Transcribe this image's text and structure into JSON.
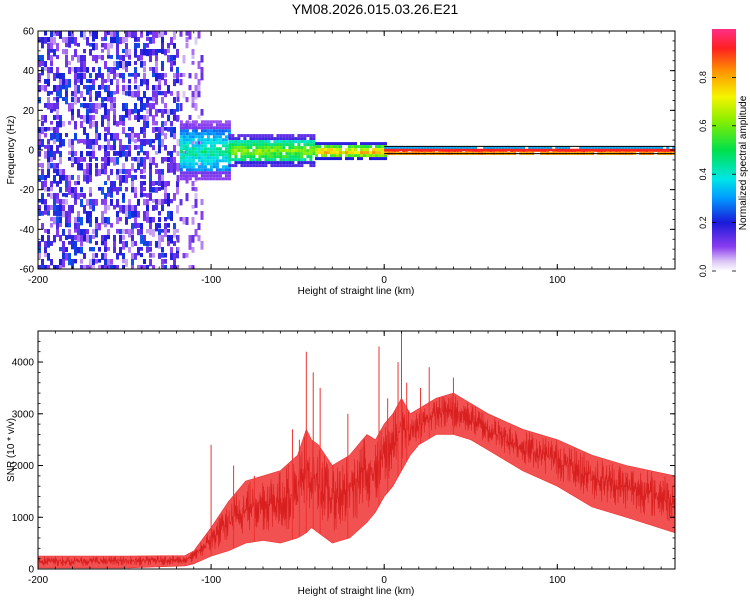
{
  "title": "YM08.2026.015.03.26.E21",
  "chart_data": [
    {
      "type": "heatmap",
      "xlabel": "Height of straight line (km)",
      "ylabel": "Frequency (Hz)",
      "xlim": [
        -200,
        168
      ],
      "ylim": [
        -60,
        60
      ],
      "xticks": [
        "-200",
        "-100",
        "0",
        "100"
      ],
      "yticks": [
        "-60",
        "-40",
        "-20",
        "0",
        "20",
        "40",
        "60"
      ],
      "colorbar": {
        "label": "Normalized spectral amplitude",
        "range": [
          0,
          1
        ],
        "ticks": [
          "0.0",
          "0.2",
          "0.4",
          "0.6",
          "0.8"
        ]
      },
      "regions": [
        {
          "x": [
            -200,
            -120
          ],
          "freq_spread": [
            -60,
            60
          ],
          "amplitude": [
            0.05,
            0.25
          ]
        },
        {
          "x": [
            -120,
            -105
          ],
          "freq_spread": [
            -60,
            60
          ],
          "amplitude": [
            0.03,
            0.15
          ]
        },
        {
          "x": [
            -118,
            -90
          ],
          "freq_spread": [
            -15,
            15
          ],
          "amplitude": [
            0.2,
            0.5
          ]
        },
        {
          "x": [
            -90,
            -40
          ],
          "freq_spread": [
            -8,
            8
          ],
          "amplitude": [
            0.3,
            0.7
          ]
        },
        {
          "x": [
            -40,
            0
          ],
          "freq_spread": [
            -4,
            4
          ],
          "amplitude": [
            0.4,
            0.9
          ]
        },
        {
          "x": [
            0,
            168
          ],
          "freq_spread": [
            -2,
            2
          ],
          "amplitude": [
            0.7,
            1.0
          ]
        }
      ]
    },
    {
      "type": "line",
      "xlabel": "Height of straight line (km)",
      "ylabel": "SNR (10 * v/v)",
      "xlim": [
        -200,
        168
      ],
      "ylim": [
        0,
        4600
      ],
      "xticks": [
        "-200",
        "-100",
        "0",
        "100"
      ],
      "yticks": [
        "0",
        "1000",
        "2000",
        "3000",
        "4000"
      ],
      "color": "#ee3333",
      "envelope": {
        "x": [
          -200,
          -150,
          -115,
          -110,
          -100,
          -90,
          -80,
          -70,
          -60,
          -50,
          -45,
          -42,
          -38,
          -30,
          -20,
          -10,
          -5,
          0,
          5,
          10,
          15,
          20,
          30,
          40,
          50,
          60,
          80,
          100,
          120,
          140,
          168
        ],
        "lower": [
          20,
          20,
          60,
          100,
          250,
          350,
          500,
          550,
          500,
          600,
          700,
          800,
          700,
          500,
          600,
          900,
          1100,
          1400,
          1600,
          1900,
          2200,
          2400,
          2600,
          2600,
          2500,
          2300,
          1900,
          1600,
          1200,
          1000,
          700
        ],
        "upper": [
          250,
          250,
          260,
          350,
          800,
          1300,
          1700,
          1800,
          1900,
          2200,
          2700,
          2500,
          2400,
          2000,
          2200,
          2600,
          2500,
          2800,
          3000,
          3300,
          3000,
          3100,
          3300,
          3400,
          3200,
          3000,
          2700,
          2500,
          2200,
          2000,
          1800
        ]
      },
      "spikes": [
        {
          "x": -100,
          "y": 2400
        },
        {
          "x": -87,
          "y": 2000
        },
        {
          "x": -75,
          "y": 1800
        },
        {
          "x": -53,
          "y": 2700
        },
        {
          "x": -49,
          "y": 2500
        },
        {
          "x": -45,
          "y": 4200
        },
        {
          "x": -41,
          "y": 3800
        },
        {
          "x": -37,
          "y": 3500
        },
        {
          "x": -21,
          "y": 3000
        },
        {
          "x": -3,
          "y": 4300
        },
        {
          "x": 2,
          "y": 3300
        },
        {
          "x": 8,
          "y": 4000
        },
        {
          "x": 10,
          "y": 4600
        },
        {
          "x": 13,
          "y": 3600
        },
        {
          "x": 21,
          "y": 3500
        },
        {
          "x": 26,
          "y": 3900
        },
        {
          "x": 40,
          "y": 3700
        }
      ]
    }
  ]
}
